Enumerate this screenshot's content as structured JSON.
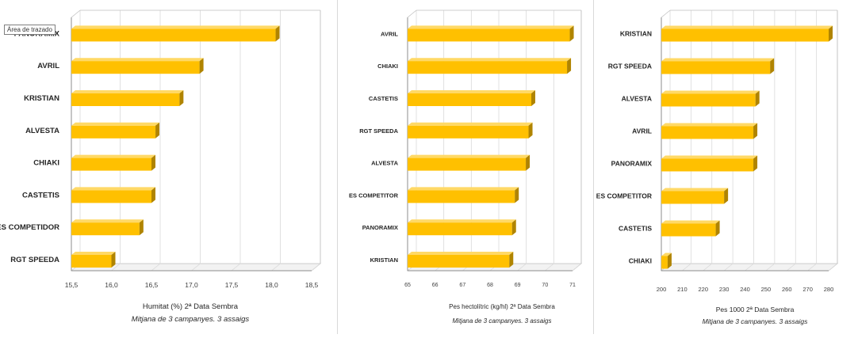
{
  "tooltip": "Área de trazado",
  "bar_color": "#FFC000",
  "bar_side_color": "#B08400",
  "bar_top_color": "#FFD966",
  "chart_data": [
    {
      "type": "bar",
      "orientation": "horizontal",
      "categories": [
        "PANORAMIX",
        "AVRIL",
        "KRISTIAN",
        "ALVESTA",
        "CHIAKI",
        "CASTETIS",
        "ES COMPETIDOR",
        "RGT SPEEDA"
      ],
      "values": [
        18.05,
        17.1,
        16.85,
        16.55,
        16.5,
        16.5,
        16.35,
        16.0
      ],
      "xlim": [
        15.5,
        18.5
      ],
      "ticks": [
        "15,5",
        "16,0",
        "16,5",
        "17,0",
        "17,5",
        "18,0",
        "18,5"
      ],
      "xlabel": "Humitat (%) 2ª Data Sembra",
      "subtitle": "Mitjana de 3 campanyes. 3 assaigs",
      "grid": true
    },
    {
      "type": "bar",
      "orientation": "horizontal",
      "categories": [
        "AVRIL",
        "CHIAKI",
        "CASTETIS",
        "RGT SPEEDA",
        "ALVESTA",
        "ES COMPETITOR",
        "PANORAMIX",
        "KRISTIAN"
      ],
      "values": [
        70.9,
        70.8,
        69.5,
        69.4,
        69.3,
        68.9,
        68.8,
        68.7
      ],
      "xlim": [
        65,
        71
      ],
      "ticks": [
        "65",
        "66",
        "67",
        "68",
        "69",
        "70",
        "71"
      ],
      "xlabel": "Pes hectolítric (kg/hl) 2ª Data Sembra",
      "subtitle": "Mitjana de 3 campanyes. 3 assaigs",
      "grid": true
    },
    {
      "type": "bar",
      "orientation": "horizontal",
      "categories": [
        "KRISTIAN",
        "RGT SPEEDA",
        "ALVESTA",
        "AVRIL",
        "PANORAMIX",
        "ES COMPETITOR",
        "CASTETIS",
        "CHIAKI"
      ],
      "values": [
        280,
        252,
        245,
        244,
        244,
        230,
        226,
        203
      ],
      "xlim": [
        200,
        280
      ],
      "ticks": [
        "200",
        "210",
        "220",
        "230",
        "240",
        "250",
        "260",
        "270",
        "280"
      ],
      "xlabel": "Pes 1000 2ª Data Sembra",
      "subtitle": "Mitjana de 3 campanyes. 3 assaigs",
      "grid": true
    }
  ]
}
